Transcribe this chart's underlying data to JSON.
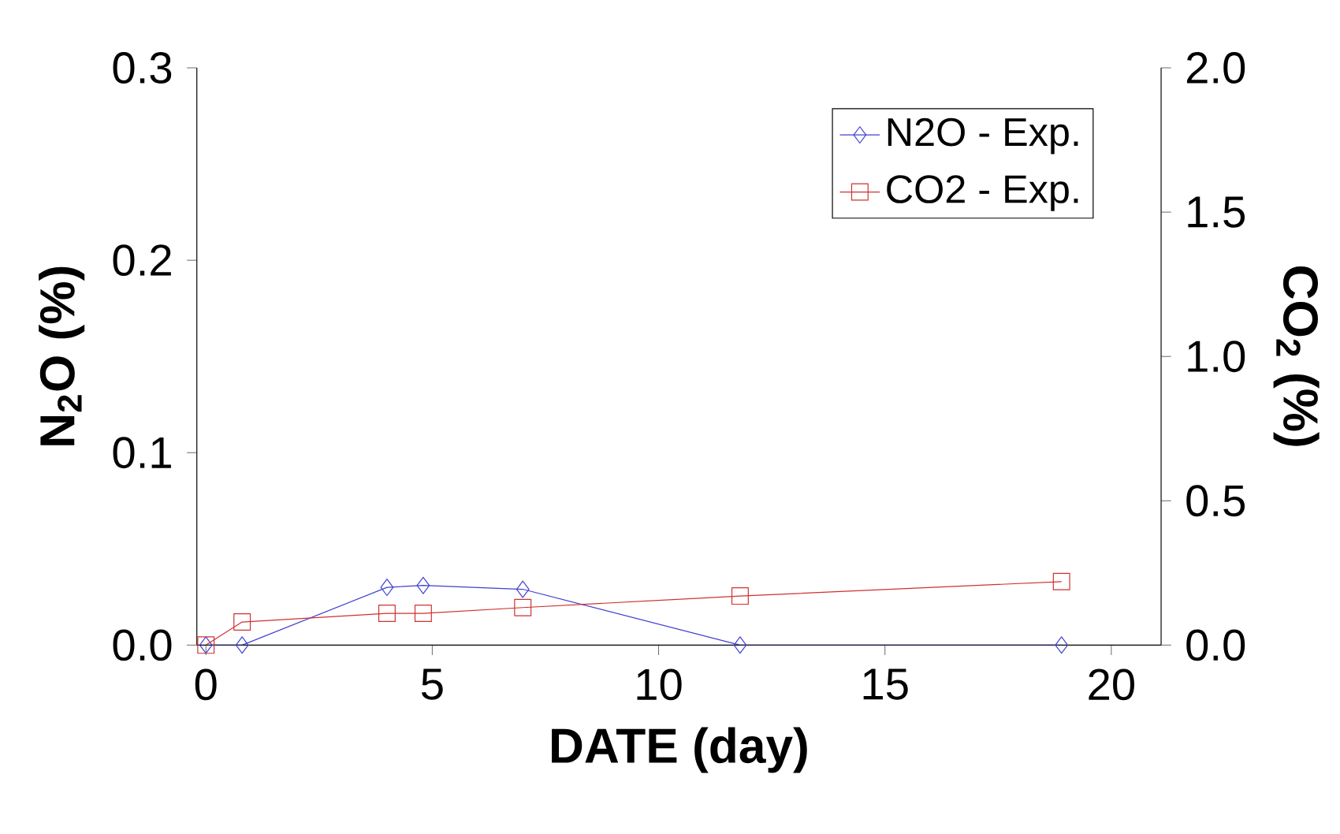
{
  "chart_data": {
    "type": "line",
    "xlabel": "DATE (day)",
    "ylabel": "N$_{2}$O (%)",
    "y2label": "CO$_{2}$ (%)",
    "xlim": [
      -0.2,
      21.1
    ],
    "xticks": [
      0,
      5,
      10,
      15,
      20
    ],
    "ylim": [
      0,
      0.3
    ],
    "yticks": [
      {
        "value": 0,
        "label": "0.0"
      },
      0.1,
      0.2,
      0.3
    ],
    "y2lim": [
      0,
      2.0
    ],
    "y2ticks": [
      {
        "value": 0,
        "label": "0.0"
      },
      0.5,
      {
        "value": 1,
        "label": "1.0"
      },
      1.5,
      {
        "value": 2,
        "label": "2.0"
      }
    ],
    "legend": "top right",
    "grid": false,
    "series": [
      {
        "name": "N2O - Exp.",
        "color": "#4040d0",
        "marker": "diamond",
        "x": [
          0,
          0.8,
          4.0,
          4.8,
          7.0,
          11.8,
          18.9
        ],
        "values": [
          0,
          0,
          0.03,
          0.031,
          0.029,
          0,
          0
        ]
      },
      {
        "name": "CO2 - Exp.",
        "color": "#d03030",
        "marker": "square",
        "axis": "y2",
        "x": [
          0,
          0.8,
          4.0,
          4.8,
          7.0,
          11.8,
          18.9
        ],
        "values": [
          0,
          0.08,
          0.11,
          0.11,
          0.13,
          0.17,
          0.22
        ]
      }
    ]
  }
}
